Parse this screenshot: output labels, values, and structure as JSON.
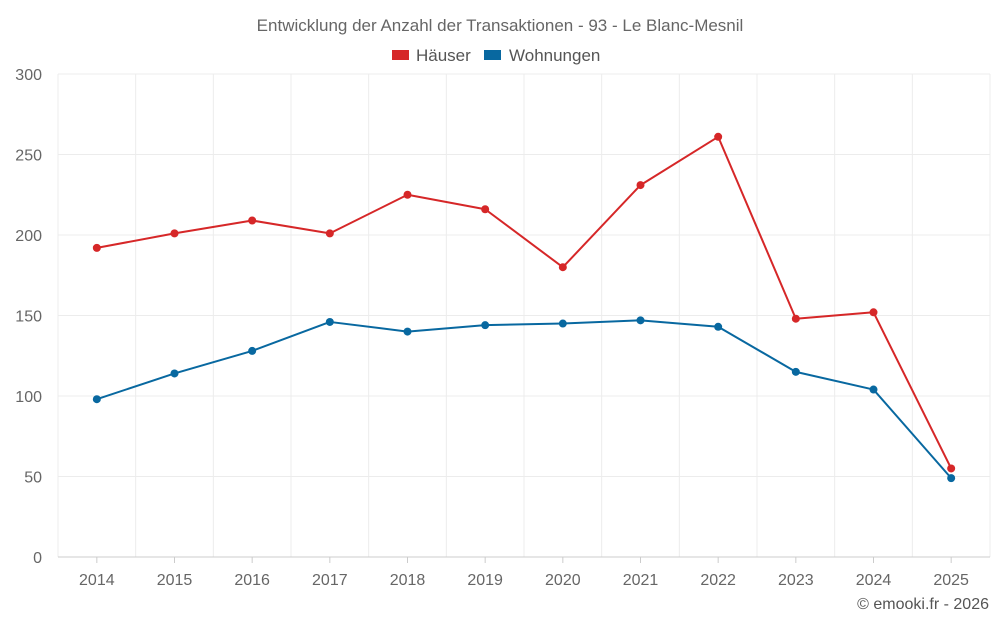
{
  "chart_data": {
    "type": "line",
    "title": "Entwicklung der Anzahl der Transaktionen - 93 - Le Blanc-Mesnil",
    "categories": [
      "2014",
      "2015",
      "2016",
      "2017",
      "2018",
      "2019",
      "2020",
      "2021",
      "2022",
      "2023",
      "2024",
      "2025"
    ],
    "series": [
      {
        "name": "Häuser",
        "color": "#d62728",
        "values": [
          192,
          201,
          209,
          201,
          225,
          216,
          180,
          231,
          261,
          148,
          152,
          55
        ]
      },
      {
        "name": "Wohnungen",
        "color": "#0868a0",
        "values": [
          98,
          114,
          128,
          146,
          140,
          144,
          145,
          147,
          143,
          115,
          104,
          49
        ]
      }
    ],
    "ylim": [
      0,
      300
    ],
    "yticks": [
      0,
      50,
      100,
      150,
      200,
      250,
      300
    ],
    "grid": true,
    "legend": "top-center",
    "xlabel": "",
    "ylabel": ""
  },
  "credit": "© emooki.fr - 2026"
}
